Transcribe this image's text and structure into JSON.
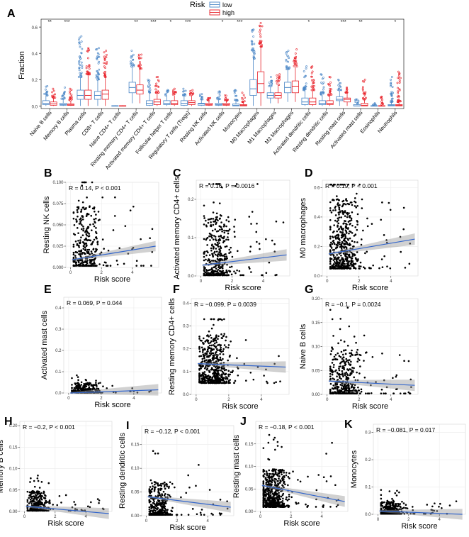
{
  "figure": {
    "panel_labels": [
      "A",
      "B",
      "C",
      "D",
      "E",
      "F",
      "G",
      "H",
      "I",
      "J",
      "K"
    ]
  },
  "chart_data": [
    {
      "id": "A",
      "type": "boxplot",
      "ylabel": "Fraction",
      "yticks": [
        0.0,
        0.2,
        0.4,
        0.6
      ],
      "ylim": [
        -0.02,
        0.66
      ],
      "legend": {
        "title": "Risk",
        "entries": [
          {
            "label": "low",
            "color": "#4a86c6"
          },
          {
            "label": "high",
            "color": "#e8222a"
          }
        ]
      },
      "categories": [
        "Naive B cells",
        "Memory B cells",
        "Plasma cells",
        "CD8+ T cells",
        "Naive CD4+ T cells",
        "Resting memory CD4+ T cells",
        "Activated memory CD4+ T cells",
        "Follicular helper T cells",
        "Regulatory T cells (Tregs)",
        "Resting NK cells",
        "Activated NK cells",
        "Monocytes",
        "M0 Macrophages",
        "M1 Macrophages",
        "M2 Macrophages",
        "Activated dendritic cells",
        "Resting dendritic cells",
        "Resting mast cells",
        "Activated mast cells",
        "Eosinophils",
        "Neutrophils"
      ],
      "significance": [
        "**",
        "***",
        "",
        "",
        "",
        "**",
        "***",
        "*",
        "***",
        "",
        "*",
        "***",
        "",
        "",
        "",
        "*",
        "",
        "***",
        "**",
        "",
        "*"
      ],
      "series": [
        {
          "name": "low",
          "boxes": [
            [
              0,
              0.01,
              0.02,
              0.04,
              0.08
            ],
            [
              0,
              0.005,
              0.01,
              0.02,
              0.05
            ],
            [
              0,
              0.05,
              0.08,
              0.12,
              0.22
            ],
            [
              0,
              0.05,
              0.08,
              0.11,
              0.2
            ],
            [
              0,
              0,
              0,
              0.002,
              0.005
            ],
            [
              0.02,
              0.1,
              0.14,
              0.18,
              0.3
            ],
            [
              0,
              0.005,
              0.02,
              0.04,
              0.1
            ],
            [
              0,
              0.01,
              0.02,
              0.04,
              0.08
            ],
            [
              0,
              0.005,
              0.02,
              0.04,
              0.08
            ],
            [
              0,
              0.005,
              0.015,
              0.02,
              0.05
            ],
            [
              0,
              0.005,
              0.01,
              0.02,
              0.05
            ],
            [
              0,
              0,
              0.005,
              0.015,
              0.04
            ],
            [
              0,
              0.08,
              0.13,
              0.2,
              0.36
            ],
            [
              0.02,
              0.06,
              0.08,
              0.1,
              0.15
            ],
            [
              0.03,
              0.1,
              0.14,
              0.18,
              0.28
            ],
            [
              0,
              0.01,
              0.03,
              0.06,
              0.12
            ],
            [
              0,
              0.01,
              0.02,
              0.04,
              0.08
            ],
            [
              0,
              0.04,
              0.05,
              0.07,
              0.12
            ],
            [
              0,
              0,
              0,
              0.01,
              0.02
            ],
            [
              0,
              0,
              0,
              0.002,
              0.005
            ],
            [
              0,
              0,
              0.005,
              0.01,
              0.03
            ]
          ],
          "outlier_max": [
            0.15,
            0.14,
            0.53,
            0.44,
            0.01,
            0.42,
            0.2,
            0.12,
            0.13,
            0.09,
            0.11,
            0.12,
            0.58,
            0.22,
            0.42,
            0.3,
            0.24,
            0.2,
            0.05,
            0.02,
            0.22
          ]
        },
        {
          "name": "high",
          "boxes": [
            [
              0,
              0.005,
              0.015,
              0.03,
              0.06
            ],
            [
              0,
              0.004,
              0.008,
              0.015,
              0.04
            ],
            [
              0,
              0.05,
              0.08,
              0.12,
              0.24
            ],
            [
              0,
              0.05,
              0.09,
              0.12,
              0.22
            ],
            [
              0,
              0,
              0,
              0.002,
              0.005
            ],
            [
              0.02,
              0.09,
              0.12,
              0.16,
              0.28
            ],
            [
              0,
              0.01,
              0.03,
              0.05,
              0.1
            ],
            [
              0,
              0.01,
              0.02,
              0.04,
              0.08
            ],
            [
              0,
              0.01,
              0.025,
              0.04,
              0.08
            ],
            [
              0,
              0.005,
              0.01,
              0.02,
              0.04
            ],
            [
              0,
              0.005,
              0.01,
              0.02,
              0.04
            ],
            [
              0,
              0,
              0.005,
              0.01,
              0.03
            ],
            [
              0,
              0.1,
              0.17,
              0.26,
              0.45
            ],
            [
              0.02,
              0.06,
              0.08,
              0.1,
              0.16
            ],
            [
              0.03,
              0.1,
              0.15,
              0.19,
              0.3
            ],
            [
              0,
              0.01,
              0.03,
              0.06,
              0.12
            ],
            [
              0,
              0.01,
              0.02,
              0.04,
              0.08
            ],
            [
              0,
              0.03,
              0.05,
              0.06,
              0.1
            ],
            [
              0,
              0,
              0.005,
              0.02,
              0.05
            ],
            [
              0,
              0,
              0,
              0.002,
              0.01
            ],
            [
              0,
              0,
              0.005,
              0.01,
              0.03
            ]
          ],
          "outlier_max": [
            0.13,
            0.13,
            0.44,
            0.42,
            0.01,
            0.39,
            0.22,
            0.13,
            0.12,
            0.06,
            0.08,
            0.1,
            0.63,
            0.24,
            0.43,
            0.3,
            0.22,
            0.14,
            0.2,
            0.07,
            0.26
          ]
        }
      ]
    },
    {
      "id": "B",
      "type": "scatter",
      "xlabel": "Risk score",
      "ylabel": "Resting NK cells",
      "annotation": "R = 0.14, P < 0.001",
      "xticks": [
        0,
        2,
        4
      ],
      "yticks": [
        "0.000",
        "0.025",
        "0.050",
        "0.075",
        "0.100"
      ],
      "ylim": [
        0,
        0.1
      ],
      "xlim": [
        -0.3,
        5.7
      ],
      "fit": {
        "y0": 0.009,
        "y1": 0.025
      },
      "cloud": {
        "center": 1.0,
        "spread": 0.5,
        "ybase": 0.0,
        "yscale": 0.03,
        "ymax": 0.1,
        "n": 360,
        "seed": 11
      }
    },
    {
      "id": "C",
      "type": "scatter",
      "xlabel": "Risk score",
      "ylabel": "Activated memory CD4+ cells",
      "annotation": "R = 0.16, P = 0.0016",
      "xticks": [
        0,
        2,
        4
      ],
      "yticks": [
        "0.0",
        "0.1",
        "0.2"
      ],
      "ylim": [
        0,
        0.25
      ],
      "xlim": [
        -0.3,
        5.7
      ],
      "fit": {
        "y0": 0.028,
        "y1": 0.055
      },
      "cloud": {
        "center": 1.0,
        "spread": 0.5,
        "ybase": 0.0,
        "yscale": 0.07,
        "ymax": 0.24,
        "n": 420,
        "seed": 23
      }
    },
    {
      "id": "D",
      "type": "scatter",
      "xlabel": "Risk score",
      "ylabel": "M0 macrophages",
      "annotation": "R = 0.19, P < 0.001",
      "xticks": [
        0,
        2,
        4
      ],
      "yticks": [
        "0.0",
        "0.2",
        "0.4",
        "0.6"
      ],
      "ylim": [
        0,
        0.65
      ],
      "xlim": [
        -0.3,
        5.7
      ],
      "fit": {
        "y0": 0.15,
        "y1": 0.25
      },
      "cloud": {
        "center": 1.0,
        "spread": 0.5,
        "ybase": 0.05,
        "yscale": 0.2,
        "ymax": 0.62,
        "n": 520,
        "seed": 37
      }
    },
    {
      "id": "E",
      "type": "scatter",
      "xlabel": "Risk score",
      "ylabel": "Activated mast cells",
      "annotation": "R = 0.069, P = 0.044",
      "xticks": [
        0,
        2,
        4
      ],
      "yticks": [
        "0.0",
        "0.1",
        "0.2",
        "0.3",
        "0.4"
      ],
      "ylim": [
        0,
        0.45
      ],
      "xlim": [
        -0.3,
        5.7
      ],
      "fit": {
        "y0": 0.0,
        "y1": 0.015
      },
      "cloud": {
        "center": 1.0,
        "spread": 0.5,
        "ybase": 0.0,
        "yscale": 0.02,
        "ymax": 0.2,
        "n": 300,
        "seed": 41
      }
    },
    {
      "id": "F",
      "type": "scatter",
      "xlabel": "Risk score",
      "ylabel": "Resting memory CD4+ cells",
      "annotation": "R = −0.099, P = 0.0039",
      "xticks": [
        0,
        2,
        4
      ],
      "yticks": [
        "0.0",
        "0.1",
        "0.2",
        "0.3",
        "0.4"
      ],
      "ylim": [
        0,
        0.42
      ],
      "xlim": [
        -0.3,
        5.7
      ],
      "fit": {
        "y0": 0.135,
        "y1": 0.12
      },
      "cloud": {
        "center": 1.0,
        "spread": 0.5,
        "ybase": 0.05,
        "yscale": 0.09,
        "ymax": 0.33,
        "n": 560,
        "seed": 53
      }
    },
    {
      "id": "G",
      "type": "scatter",
      "xlabel": "Risk score",
      "ylabel": "Naive B cells",
      "annotation": "R = −0.1, P = 0.0024",
      "xticks": [
        0,
        2,
        4
      ],
      "yticks": [
        "0.00",
        "0.05",
        "0.10",
        "0.15",
        "0.20"
      ],
      "ylim": [
        0,
        0.2
      ],
      "xlim": [
        -0.3,
        5.7
      ],
      "fit": {
        "y0": 0.028,
        "y1": 0.019
      },
      "cloud": {
        "center": 1.0,
        "spread": 0.5,
        "ybase": 0.0,
        "yscale": 0.04,
        "ymax": 0.2,
        "n": 420,
        "seed": 67
      }
    },
    {
      "id": "H",
      "type": "scatter",
      "xlabel": "Risk score",
      "ylabel": "Memory B cells",
      "annotation": "R = −0.2, P < 0.001",
      "xticks": [
        0,
        2,
        4
      ],
      "yticks": [
        "0.00",
        "0.05",
        "0.10",
        "0.15",
        "0.20"
      ],
      "ylim": [
        0,
        0.21
      ],
      "xlim": [
        -0.3,
        5.7
      ],
      "fit": {
        "y0": 0.012,
        "y1": -0.005
      },
      "cloud": {
        "center": 0.8,
        "spread": 0.35,
        "ybase": 0.0,
        "yscale": 0.02,
        "ymax": 0.2,
        "n": 320,
        "seed": 71
      }
    },
    {
      "id": "I",
      "type": "scatter",
      "xlabel": "Risk score",
      "ylabel": "Resting dendritic cells",
      "annotation": "R = −0.12, P < 0.001",
      "xticks": [
        0,
        2,
        4
      ],
      "yticks": [
        "0.00",
        "0.05",
        "0.10",
        "0.15"
      ],
      "ylim": [
        0,
        0.19
      ],
      "xlim": [
        -0.3,
        5.7
      ],
      "fit": {
        "y0": 0.04,
        "y1": 0.018
      },
      "cloud": {
        "center": 0.8,
        "spread": 0.4,
        "ybase": 0.0,
        "yscale": 0.03,
        "ymax": 0.16,
        "n": 360,
        "seed": 83
      }
    },
    {
      "id": "J",
      "type": "scatter",
      "xlabel": "Risk score",
      "ylabel": "Resting mast cells",
      "annotation": "R = −0.18, P < 0.001",
      "xticks": [
        0,
        2,
        4
      ],
      "yticks": [
        "0.00",
        "0.05",
        "0.10",
        "0.15"
      ],
      "ylim": [
        0,
        0.2
      ],
      "xlim": [
        -0.3,
        5.7
      ],
      "fit": {
        "y0": 0.058,
        "y1": 0.022
      },
      "cloud": {
        "center": 0.8,
        "spread": 0.45,
        "ybase": 0.01,
        "yscale": 0.035,
        "ymax": 0.17,
        "n": 560,
        "seed": 97
      }
    },
    {
      "id": "K",
      "type": "scatter",
      "xlabel": "Risk score",
      "ylabel": "Monocytes",
      "annotation": "R = −0.081, P = 0.017",
      "xticks": [
        0,
        2,
        4
      ],
      "yticks": [
        "0.0",
        "0.1",
        "0.2",
        "0.3"
      ],
      "ylim": [
        0,
        0.33
      ],
      "xlim": [
        -0.3,
        5.7
      ],
      "fit": {
        "y0": 0.012,
        "y1": 0.0
      },
      "cloud": {
        "center": 0.8,
        "spread": 0.4,
        "ybase": 0.0,
        "yscale": 0.02,
        "ymax": 0.22,
        "n": 340,
        "seed": 101
      }
    }
  ]
}
